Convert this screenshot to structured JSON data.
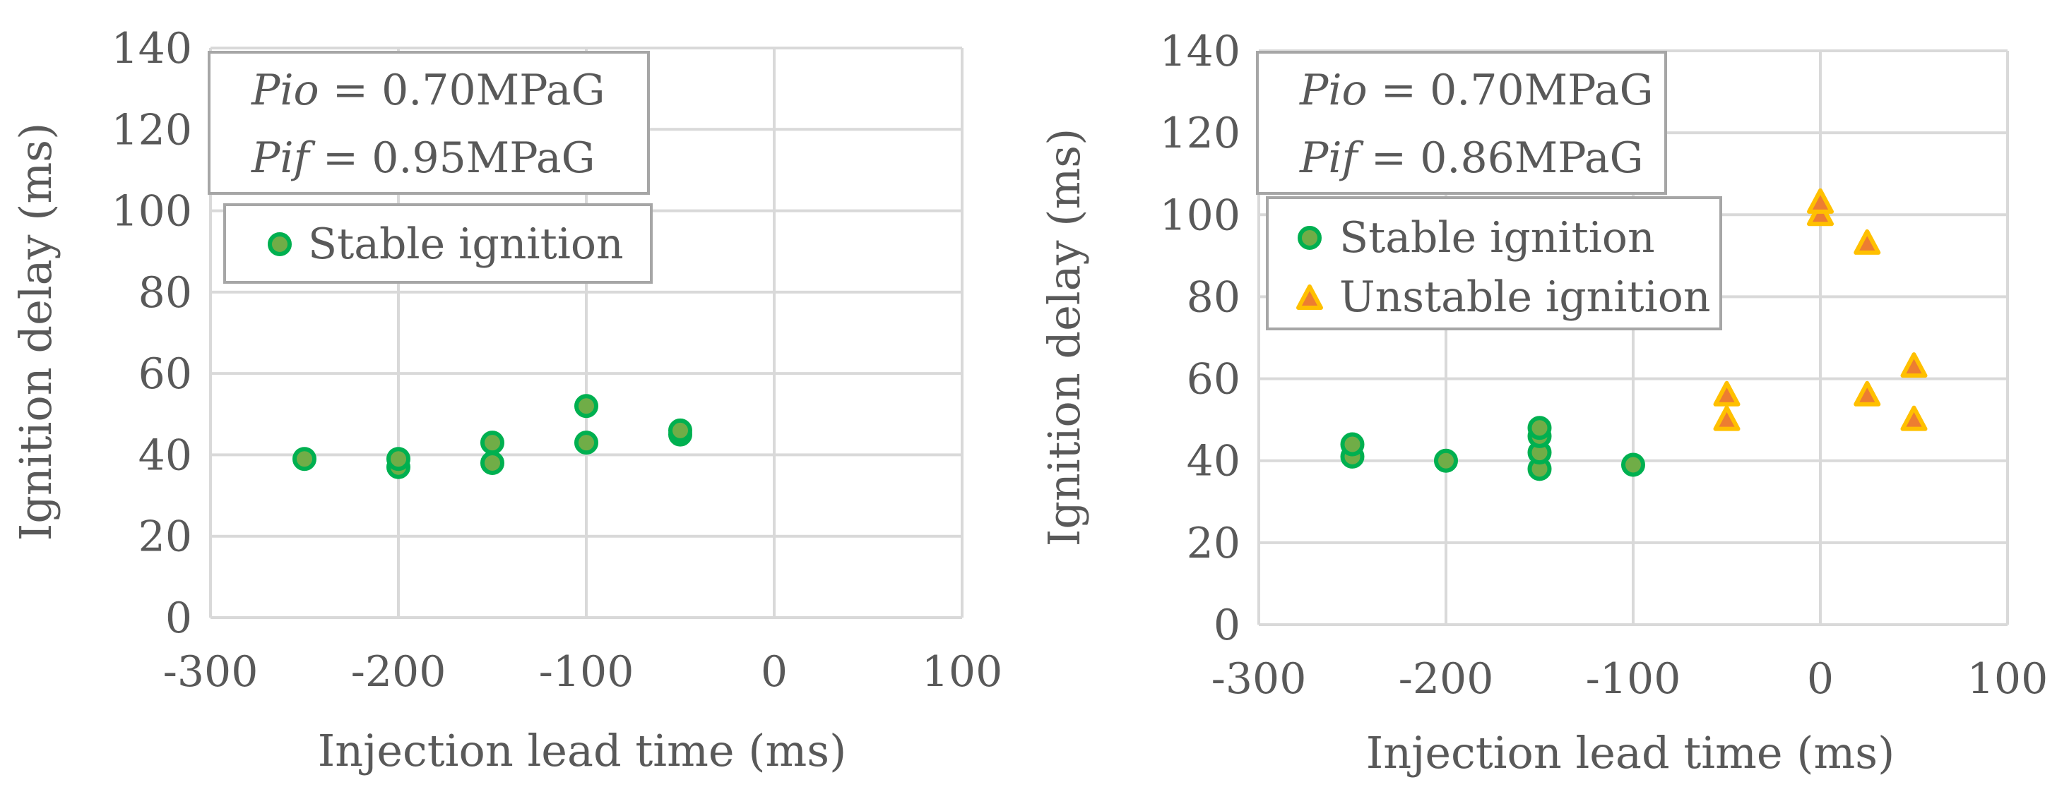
{
  "chart_data": [
    {
      "type": "scatter",
      "title": "",
      "xlabel": "Injection lead time (ms)",
      "ylabel": "Ignition delay (ms)",
      "xlim": [
        -300,
        100
      ],
      "ylim": [
        0,
        140
      ],
      "xticks": [
        -300,
        -200,
        -100,
        0,
        100
      ],
      "yticks": [
        0,
        20,
        40,
        60,
        80,
        100,
        120,
        140
      ],
      "xtick_labels": [
        "-300",
        "-200",
        "-100",
        "0",
        "100"
      ],
      "ytick_labels": [
        "0",
        "20",
        "40",
        "60",
        "80",
        "100",
        "120",
        "140"
      ],
      "grid": true,
      "annotation": {
        "line1": {
          "var": "Pio",
          "value": " = 0.70MPaG"
        },
        "line2": {
          "var": "Pif",
          "value": " = 0.95MPaG"
        }
      },
      "series": [
        {
          "name": "Stable ignition",
          "marker": "circle",
          "fill": "#70AD47",
          "stroke": "#00B050",
          "x": [
            -250,
            -200,
            -200,
            -150,
            -150,
            -100,
            -100,
            -50,
            -50
          ],
          "y": [
            39,
            37,
            39,
            38,
            43,
            43,
            52,
            45,
            46
          ]
        }
      ]
    },
    {
      "type": "scatter",
      "title": "",
      "xlabel": "Injection lead time (ms)",
      "ylabel": "Ignition delay (ms)",
      "xlim": [
        -300,
        100
      ],
      "ylim": [
        0,
        140
      ],
      "xticks": [
        -300,
        -200,
        -100,
        0,
        100
      ],
      "yticks": [
        0,
        20,
        40,
        60,
        80,
        100,
        120,
        140
      ],
      "xtick_labels": [
        "-300",
        "-200",
        "-100",
        "0",
        "100"
      ],
      "ytick_labels": [
        "0",
        "20",
        "40",
        "60",
        "80",
        "100",
        "120",
        "140"
      ],
      "grid": true,
      "annotation": {
        "line1": {
          "var": "Pio",
          "value": " = 0.70MPaG"
        },
        "line2": {
          "var": "Pif",
          "value": " = 0.86MPaG"
        }
      },
      "series": [
        {
          "name": "Stable ignition",
          "marker": "circle",
          "fill": "#70AD47",
          "stroke": "#00B050",
          "x": [
            -250,
            -250,
            -200,
            -150,
            -150,
            -150,
            -150,
            -100
          ],
          "y": [
            41,
            44,
            40,
            38,
            42,
            46,
            48,
            39
          ]
        },
        {
          "name": "Unstable ignition",
          "marker": "triangle",
          "fill": "#ED7D31",
          "stroke": "#FFC000",
          "x": [
            -50,
            -50,
            0,
            0,
            25,
            25,
            50,
            50
          ],
          "y": [
            50,
            56,
            100,
            103,
            93,
            56,
            63,
            50
          ]
        }
      ]
    }
  ]
}
